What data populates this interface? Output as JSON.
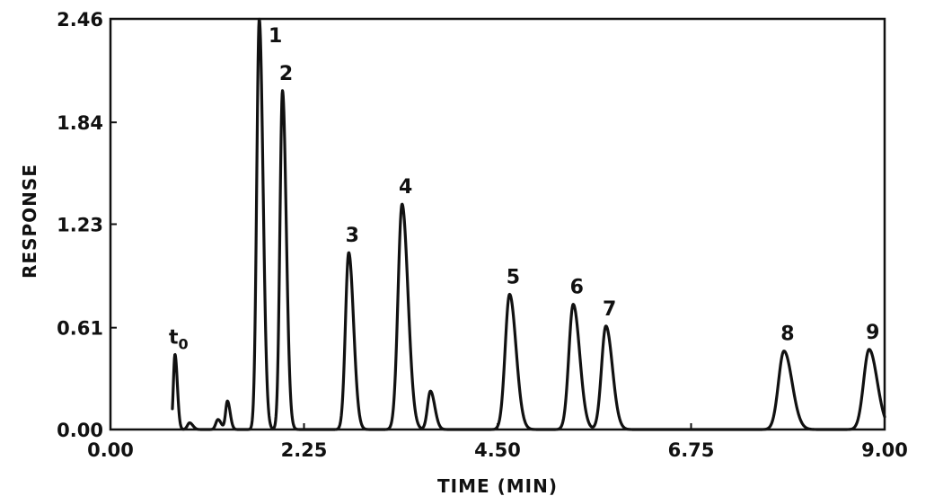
{
  "chart_data": {
    "type": "line",
    "xlabel": "TIME (MIN)",
    "ylabel": "RESPONSE",
    "xlim": [
      0,
      9
    ],
    "ylim": [
      0,
      2.46
    ],
    "x_ticks": [
      "0.00",
      "2.25",
      "4.50",
      "6.75",
      "9.00"
    ],
    "x_tick_values": [
      0,
      2.25,
      4.5,
      6.75,
      9
    ],
    "y_ticks": [
      "0.00",
      "0.61",
      "1.23",
      "1.84",
      "2.46"
    ],
    "y_tick_values": [
      0,
      0.61,
      1.23,
      1.84,
      2.46
    ],
    "grid": false,
    "peaks": [
      {
        "label": "t",
        "sub": "0",
        "rt": 0.75,
        "height": 0.45,
        "sigma": 0.022
      },
      {
        "label": "1",
        "rt": 1.73,
        "height": 2.46,
        "sigma": 0.035
      },
      {
        "label": "2",
        "rt": 2.0,
        "height": 2.03,
        "sigma": 0.035
      },
      {
        "label": "3",
        "rt": 2.77,
        "height": 1.06,
        "sigma": 0.045
      },
      {
        "label": "4",
        "rt": 3.39,
        "height": 1.35,
        "sigma": 0.055
      },
      {
        "label": "5",
        "rt": 4.64,
        "height": 0.81,
        "sigma": 0.06
      },
      {
        "label": "6",
        "rt": 5.38,
        "height": 0.75,
        "sigma": 0.06
      },
      {
        "label": "7",
        "rt": 5.76,
        "height": 0.62,
        "sigma": 0.06
      },
      {
        "label": "8",
        "rt": 7.83,
        "height": 0.47,
        "sigma": 0.075
      },
      {
        "label": "9",
        "rt": 8.82,
        "height": 0.48,
        "sigma": 0.075
      }
    ],
    "minor_peaks": [
      {
        "rt": 0.92,
        "height": 0.04,
        "sigma": 0.03
      },
      {
        "rt": 1.25,
        "height": 0.06,
        "sigma": 0.03
      },
      {
        "rt": 1.36,
        "height": 0.17,
        "sigma": 0.025
      },
      {
        "rt": 3.72,
        "height": 0.23,
        "sigma": 0.04
      }
    ]
  }
}
